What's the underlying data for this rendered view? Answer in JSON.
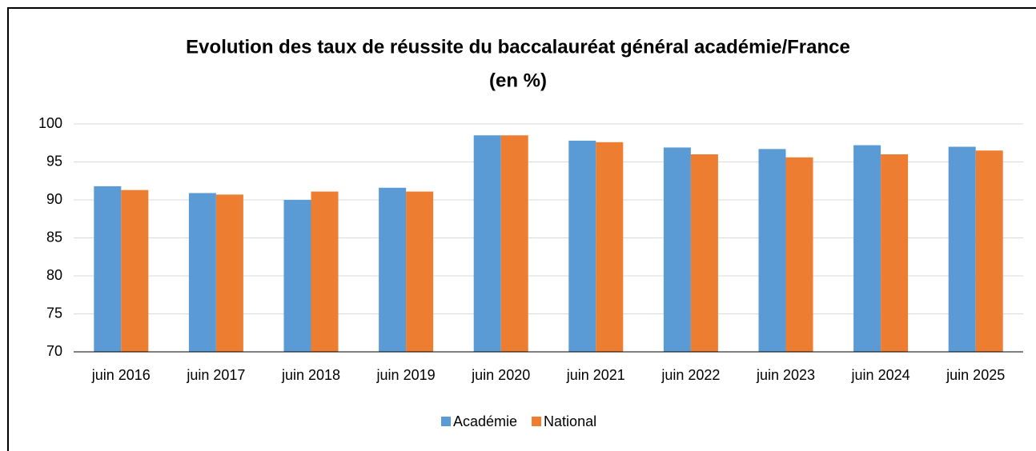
{
  "chart_data": {
    "type": "bar",
    "title": [
      "Evolution des taux de réussite du baccalauréat général académie/France",
      "(en %)"
    ],
    "categories": [
      "juin 2016",
      "juin 2017",
      "juin 2018",
      "juin 2019",
      "juin 2020",
      "juin 2021",
      "juin 2022",
      "juin 2023",
      "juin 2024",
      "juin 2025"
    ],
    "series": [
      {
        "name": "Académie",
        "color": "#5b9bd5",
        "values": [
          91.8,
          90.9,
          90.0,
          91.6,
          98.5,
          97.8,
          96.9,
          96.7,
          97.2,
          97.0
        ]
      },
      {
        "name": "National",
        "color": "#ed7d31",
        "values": [
          91.3,
          90.7,
          91.1,
          91.1,
          98.5,
          97.6,
          96.0,
          95.6,
          96.0,
          96.5
        ]
      }
    ],
    "ylim": [
      70,
      100
    ],
    "yticks": [
      70,
      75,
      80,
      85,
      90,
      95,
      100
    ],
    "grid": true,
    "legend": "bottom"
  }
}
